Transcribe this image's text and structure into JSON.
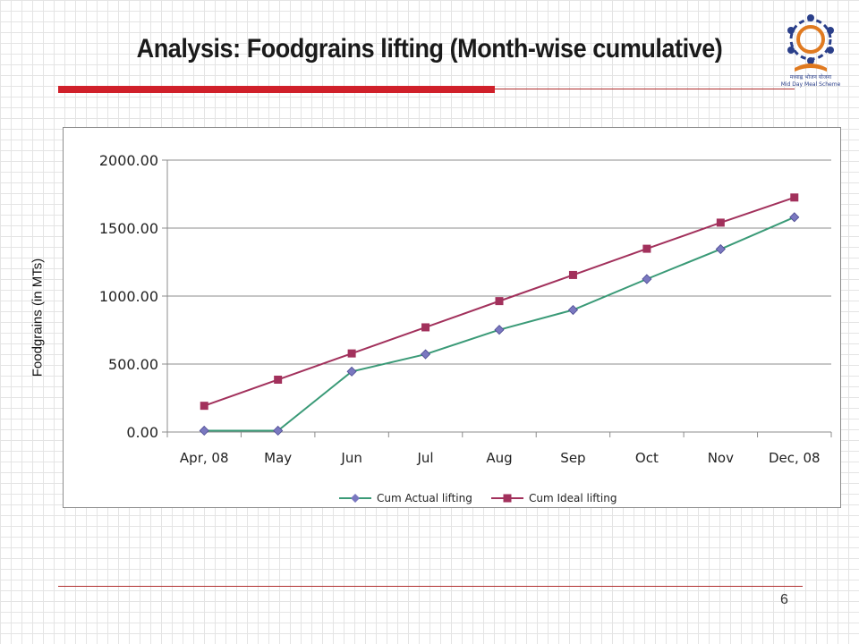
{
  "slide": {
    "title": "Analysis: Foodgrains lifting (Month-wise cumulative)",
    "page_number": "6",
    "logo_text_1": "मध्याह्न भोजन योजना",
    "logo_text_2": "Mid Day Meal Scheme"
  },
  "colors": {
    "accent_rule": "#d0202a",
    "series_actual": "#3a9a77",
    "series_actual_marker": "#7a78c0",
    "series_ideal": "#a2315c",
    "series_ideal_marker": "#a2315c"
  },
  "chart_data": {
    "type": "line",
    "title": "",
    "xlabel": "",
    "ylabel": "Foodgrains (in MTs)",
    "categories": [
      "Apr, 08",
      "May",
      "Jun",
      "Jul",
      "Aug",
      "Sep",
      "Oct",
      "Nov",
      "Dec, 08"
    ],
    "ylim": [
      0,
      2000
    ],
    "yticks": [
      "0.00",
      "500.00",
      "1000.00",
      "1500.00",
      "2000.00"
    ],
    "grid": "horizontal",
    "legend_position": "bottom",
    "series": [
      {
        "name": "Cum Actual lifting",
        "values": [
          10,
          10,
          445,
          572,
          752,
          898,
          1125,
          1345,
          1580
        ],
        "marker": "diamond"
      },
      {
        "name": "Cum Ideal lifting",
        "values": [
          193,
          385,
          578,
          770,
          963,
          1155,
          1348,
          1540,
          1725
        ],
        "marker": "square"
      }
    ]
  }
}
